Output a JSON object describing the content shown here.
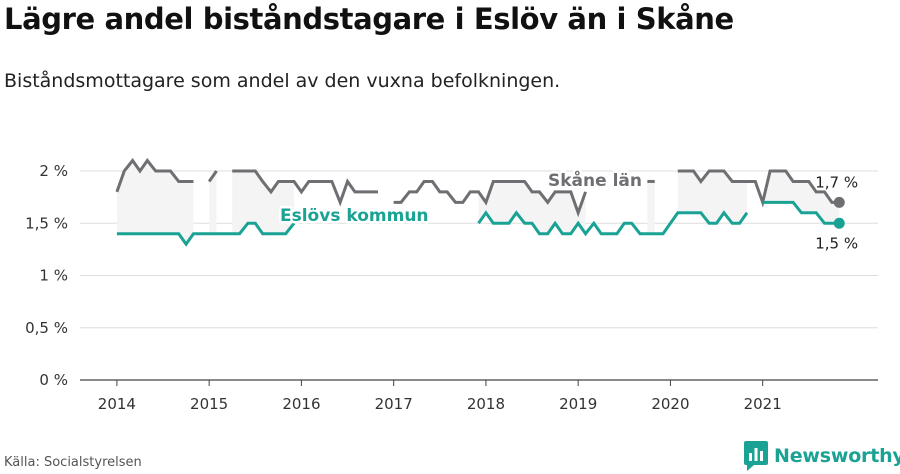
{
  "title": "Lägre andel biståndstagare i Eslöv än i Skåne",
  "subtitle": "Biståndsmottagare som andel av den vuxna befolkningen.",
  "source": "Källa: Socialstyrelsen",
  "brand": {
    "name": "Newsworthy",
    "icon": "newsworthy-logo-icon",
    "color": "#1aa394"
  },
  "chart_data": {
    "type": "line",
    "x_ticks": [
      "2014",
      "2015",
      "2016",
      "2017",
      "2018",
      "2019",
      "2020",
      "2021"
    ],
    "y_ticks": [
      "0 %",
      "0,5 %",
      "1 %",
      "1,5 %",
      "2 %"
    ],
    "ylim": [
      0,
      2.1
    ],
    "xlim": [
      2013.6,
      2022.25
    ],
    "grid": true,
    "series": [
      {
        "name": "Skåne län",
        "color": "#6e6e73",
        "end_label": "1,7 %",
        "points": [
          [
            2014.0,
            1.8
          ],
          [
            2014.08,
            2.0
          ],
          [
            2014.17,
            2.1
          ],
          [
            2014.25,
            2.0
          ],
          [
            2014.33,
            2.1
          ],
          [
            2014.42,
            2.0
          ],
          [
            2014.5,
            2.0
          ],
          [
            2014.58,
            2.0
          ],
          [
            2014.67,
            1.9
          ],
          [
            2014.75,
            1.9
          ],
          [
            2014.83,
            1.9
          ],
          [
            2014.92,
            null
          ],
          [
            2015.0,
            1.9
          ],
          [
            2015.08,
            2.0
          ],
          [
            2015.17,
            null
          ],
          [
            2015.25,
            2.0
          ],
          [
            2015.33,
            2.0
          ],
          [
            2015.42,
            2.0
          ],
          [
            2015.5,
            2.0
          ],
          [
            2015.58,
            1.9
          ],
          [
            2015.67,
            1.8
          ],
          [
            2015.75,
            1.9
          ],
          [
            2015.83,
            1.9
          ],
          [
            2015.92,
            1.9
          ],
          [
            2016.0,
            1.8
          ],
          [
            2016.08,
            1.9
          ],
          [
            2016.17,
            1.9
          ],
          [
            2016.25,
            1.9
          ],
          [
            2016.33,
            1.9
          ],
          [
            2016.42,
            1.7
          ],
          [
            2016.5,
            1.9
          ],
          [
            2016.58,
            1.8
          ],
          [
            2016.67,
            1.8
          ],
          [
            2016.75,
            1.8
          ],
          [
            2016.83,
            1.8
          ],
          [
            2016.92,
            null
          ],
          [
            2017.0,
            1.7
          ],
          [
            2017.08,
            1.7
          ],
          [
            2017.17,
            1.8
          ],
          [
            2017.25,
            1.8
          ],
          [
            2017.33,
            1.9
          ],
          [
            2017.42,
            1.9
          ],
          [
            2017.5,
            1.8
          ],
          [
            2017.58,
            1.8
          ],
          [
            2017.67,
            1.7
          ],
          [
            2017.75,
            1.7
          ],
          [
            2017.83,
            1.8
          ],
          [
            2017.92,
            1.8
          ],
          [
            2018.0,
            1.7
          ],
          [
            2018.08,
            1.9
          ],
          [
            2018.17,
            1.9
          ],
          [
            2018.25,
            1.9
          ],
          [
            2018.33,
            1.9
          ],
          [
            2018.42,
            1.9
          ],
          [
            2018.5,
            1.8
          ],
          [
            2018.58,
            1.8
          ],
          [
            2018.67,
            1.7
          ],
          [
            2018.75,
            1.8
          ],
          [
            2018.83,
            1.8
          ],
          [
            2018.92,
            1.8
          ],
          [
            2019.0,
            1.6
          ],
          [
            2019.08,
            1.8
          ],
          [
            2019.17,
            null
          ],
          [
            2019.25,
            null
          ],
          [
            2019.33,
            null
          ],
          [
            2019.42,
            null
          ],
          [
            2019.5,
            null
          ],
          [
            2019.58,
            null
          ],
          [
            2019.67,
            null
          ],
          [
            2019.75,
            1.9
          ],
          [
            2019.83,
            1.9
          ],
          [
            2019.92,
            null
          ],
          [
            2020.0,
            null
          ],
          [
            2020.08,
            2.0
          ],
          [
            2020.17,
            2.0
          ],
          [
            2020.25,
            2.0
          ],
          [
            2020.33,
            1.9
          ],
          [
            2020.42,
            2.0
          ],
          [
            2020.5,
            2.0
          ],
          [
            2020.58,
            2.0
          ],
          [
            2020.67,
            1.9
          ],
          [
            2020.75,
            1.9
          ],
          [
            2020.83,
            1.9
          ],
          [
            2020.92,
            1.9
          ],
          [
            2021.0,
            1.7
          ],
          [
            2021.08,
            2.0
          ],
          [
            2021.17,
            2.0
          ],
          [
            2021.25,
            2.0
          ],
          [
            2021.33,
            1.9
          ],
          [
            2021.42,
            1.9
          ],
          [
            2021.5,
            1.9
          ],
          [
            2021.58,
            1.8
          ],
          [
            2021.67,
            1.8
          ],
          [
            2021.75,
            1.7
          ],
          [
            2021.83,
            1.7
          ]
        ]
      },
      {
        "name": "Eslövs kommun",
        "color": "#1aa394",
        "end_label": "1,5 %",
        "points": [
          [
            2014.0,
            1.4
          ],
          [
            2014.08,
            1.4
          ],
          [
            2014.17,
            1.4
          ],
          [
            2014.25,
            1.4
          ],
          [
            2014.33,
            1.4
          ],
          [
            2014.42,
            1.4
          ],
          [
            2014.5,
            1.4
          ],
          [
            2014.58,
            1.4
          ],
          [
            2014.67,
            1.4
          ],
          [
            2014.75,
            1.3
          ],
          [
            2014.83,
            1.4
          ],
          [
            2014.92,
            1.4
          ],
          [
            2015.0,
            1.4
          ],
          [
            2015.08,
            1.4
          ],
          [
            2015.17,
            1.4
          ],
          [
            2015.25,
            1.4
          ],
          [
            2015.33,
            1.4
          ],
          [
            2015.42,
            1.5
          ],
          [
            2015.5,
            1.5
          ],
          [
            2015.58,
            1.4
          ],
          [
            2015.67,
            1.4
          ],
          [
            2015.75,
            1.4
          ],
          [
            2015.83,
            1.4
          ],
          [
            2015.92,
            1.5
          ],
          [
            2016.0,
            null
          ],
          [
            2016.08,
            null
          ],
          [
            2016.17,
            null
          ],
          [
            2016.25,
            null
          ],
          [
            2016.33,
            null
          ],
          [
            2016.42,
            null
          ],
          [
            2016.5,
            null
          ],
          [
            2016.58,
            null
          ],
          [
            2016.67,
            null
          ],
          [
            2016.75,
            null
          ],
          [
            2016.83,
            null
          ],
          [
            2016.92,
            null
          ],
          [
            2017.0,
            null
          ],
          [
            2017.08,
            null
          ],
          [
            2017.17,
            null
          ],
          [
            2017.25,
            null
          ],
          [
            2017.33,
            null
          ],
          [
            2017.42,
            null
          ],
          [
            2017.5,
            null
          ],
          [
            2017.58,
            null
          ],
          [
            2017.67,
            null
          ],
          [
            2017.75,
            null
          ],
          [
            2017.83,
            null
          ],
          [
            2017.92,
            1.5
          ],
          [
            2018.0,
            1.6
          ],
          [
            2018.08,
            1.5
          ],
          [
            2018.17,
            1.5
          ],
          [
            2018.25,
            1.5
          ],
          [
            2018.33,
            1.6
          ],
          [
            2018.42,
            1.5
          ],
          [
            2018.5,
            1.5
          ],
          [
            2018.58,
            1.4
          ],
          [
            2018.67,
            1.4
          ],
          [
            2018.75,
            1.5
          ],
          [
            2018.83,
            1.4
          ],
          [
            2018.92,
            1.4
          ],
          [
            2019.0,
            1.5
          ],
          [
            2019.08,
            1.4
          ],
          [
            2019.17,
            1.5
          ],
          [
            2019.25,
            1.4
          ],
          [
            2019.33,
            1.4
          ],
          [
            2019.42,
            1.4
          ],
          [
            2019.5,
            1.5
          ],
          [
            2019.58,
            1.5
          ],
          [
            2019.67,
            1.4
          ],
          [
            2019.75,
            1.4
          ],
          [
            2019.83,
            1.4
          ],
          [
            2019.92,
            1.4
          ],
          [
            2020.0,
            1.5
          ],
          [
            2020.08,
            1.6
          ],
          [
            2020.17,
            1.6
          ],
          [
            2020.25,
            1.6
          ],
          [
            2020.33,
            1.6
          ],
          [
            2020.42,
            1.5
          ],
          [
            2020.5,
            1.5
          ],
          [
            2020.58,
            1.6
          ],
          [
            2020.67,
            1.5
          ],
          [
            2020.75,
            1.5
          ],
          [
            2020.83,
            1.6
          ],
          [
            2020.92,
            null
          ],
          [
            2021.0,
            1.7
          ],
          [
            2021.08,
            1.7
          ],
          [
            2021.17,
            1.7
          ],
          [
            2021.25,
            1.7
          ],
          [
            2021.33,
            1.7
          ],
          [
            2021.42,
            1.6
          ],
          [
            2021.5,
            1.6
          ],
          [
            2021.58,
            1.6
          ],
          [
            2021.67,
            1.5
          ],
          [
            2021.75,
            1.5
          ],
          [
            2021.83,
            1.5
          ]
        ]
      }
    ]
  }
}
